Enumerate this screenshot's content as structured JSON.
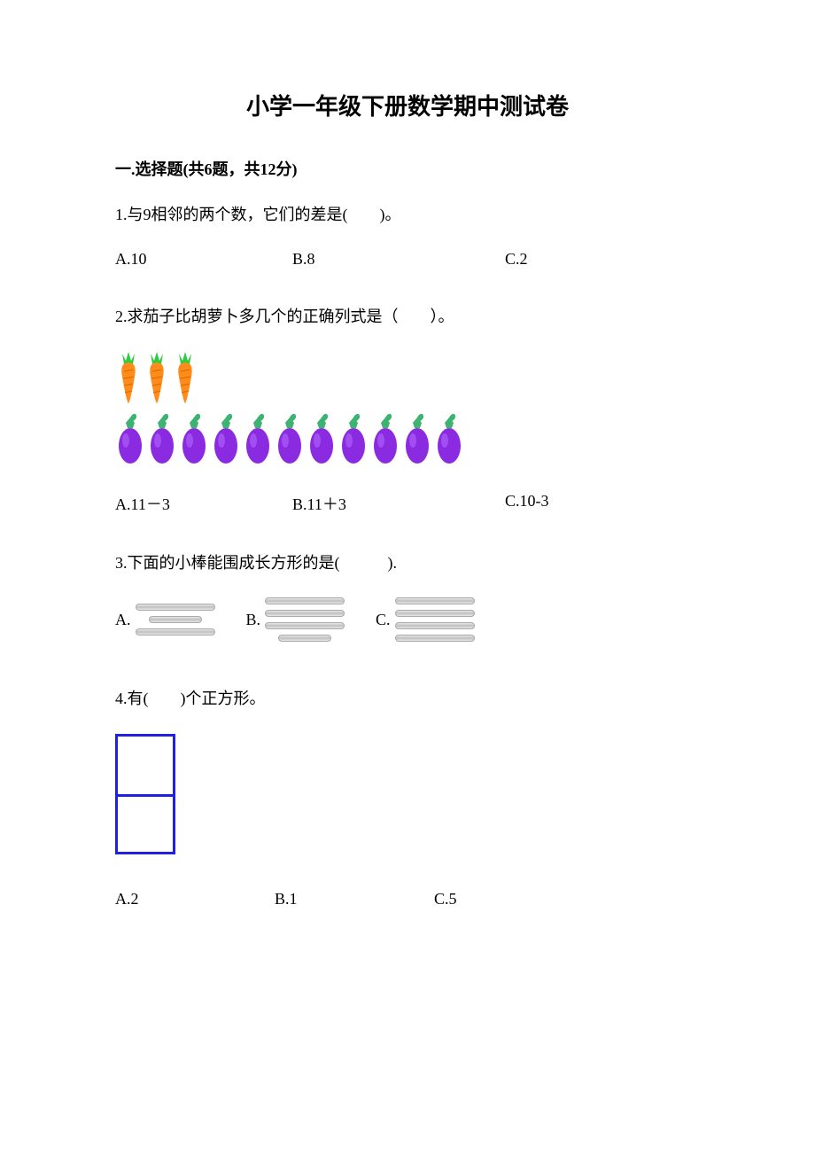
{
  "title": "小学一年级下册数学期中测试卷",
  "section1": {
    "header": "一.选择题(共6题，共12分)",
    "q1": {
      "text": "1.与9相邻的两个数，它们的差是(　　)。",
      "optA": "A.10",
      "optB": "B.8",
      "optC": "C.2"
    },
    "q2": {
      "text": "2.求茄子比胡萝卜多几个的正确列式是（　　）。",
      "carrot_count": 3,
      "eggplant_count": 11,
      "carrot_colors": {
        "body": "#ff8c1a",
        "leaf": "#2ecc40"
      },
      "eggplant_colors": {
        "body": "#8a2be2",
        "leaf": "#3cb371"
      },
      "optA": "A.11－3",
      "optB": "B.11＋3",
      "optC": "C.10-3"
    },
    "q3": {
      "text": "3.下面的小棒能围成长方形的是(　　　).",
      "labelA": "A.",
      "labelB": "B.",
      "labelC": "C.",
      "sticks": {
        "A": [
          "long",
          "short",
          "long"
        ],
        "B": [
          "long",
          "long",
          "long",
          "short"
        ],
        "C": [
          "long",
          "long",
          "long",
          "long"
        ]
      },
      "stick_color": "#c8c8c8"
    },
    "q4": {
      "text": "4.有(　　)个正方形。",
      "square_color": "#2020e0",
      "optA": "A.2",
      "optB": "B.1",
      "optC": "C.5"
    }
  }
}
